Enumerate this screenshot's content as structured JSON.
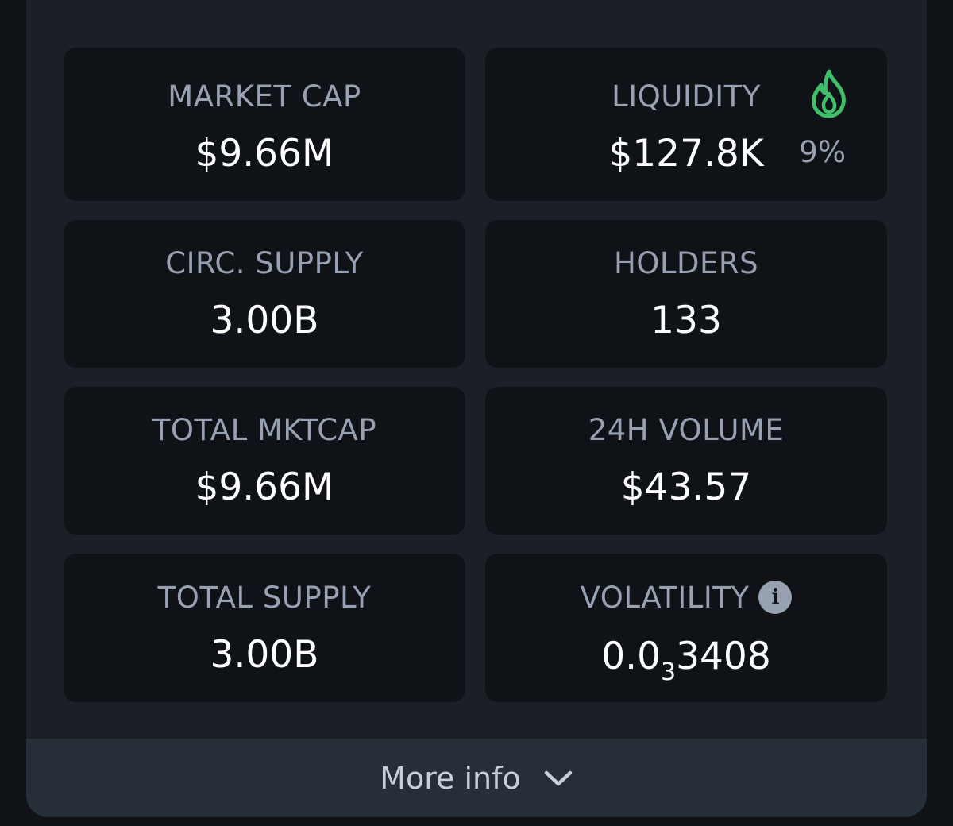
{
  "stats": {
    "market_cap": {
      "label": "MARKET CAP",
      "value": "$9.66M"
    },
    "liquidity": {
      "label": "LIQUIDITY",
      "value": "$127.8K",
      "percent": "9%",
      "icon": "fire-icon",
      "icon_color": "#3fbf6a"
    },
    "circ_supply": {
      "label": "CIRC. SUPPLY",
      "value": "3.00B"
    },
    "holders": {
      "label": "HOLDERS",
      "value": "133"
    },
    "total_mktcap": {
      "label": "TOTAL MKTCAP",
      "value": "$9.66M"
    },
    "volume_24h": {
      "label": "24H VOLUME",
      "value": "$43.57"
    },
    "total_supply": {
      "label": "TOTAL SUPPLY",
      "value": "3.00B"
    },
    "volatility": {
      "label": "VOLATILITY",
      "value_prefix": "0.0",
      "value_subscript": "3",
      "value_suffix": "3408",
      "icon": "info-icon"
    }
  },
  "more_info": {
    "label": "More info",
    "icon": "chevron-down-icon"
  },
  "colors": {
    "page_background": "#0f1317",
    "panel": "#1b2027",
    "card": "#0f1216",
    "label": "#97a1b1",
    "value": "#ffffff",
    "accent_green": "#3fbf6a",
    "footer": "#262f38"
  }
}
